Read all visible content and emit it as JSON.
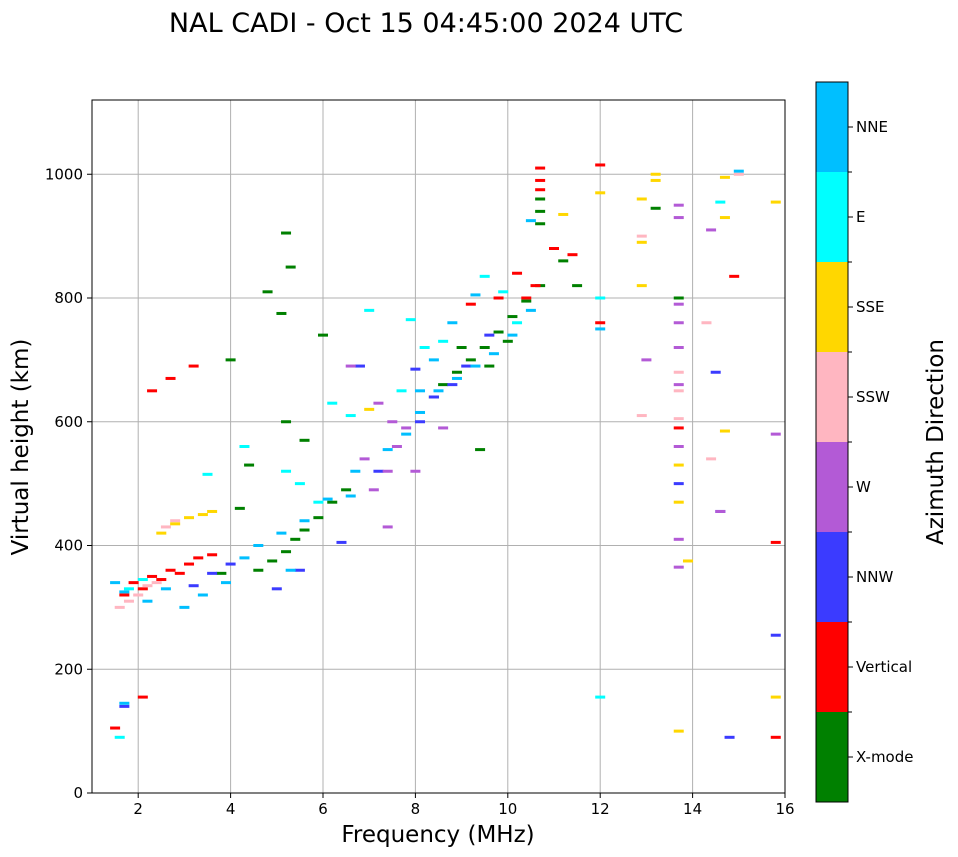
{
  "chart_data": {
    "type": "scatter",
    "title": "NAL CADI - Oct 15 04:45:00 2024 UTC",
    "xlabel": "Frequency (MHz)",
    "ylabel": "Virtual height (km)",
    "xlim": [
      1,
      16
    ],
    "ylim": [
      0,
      1120
    ],
    "xticks": [
      2,
      4,
      6,
      8,
      10,
      12,
      14,
      16
    ],
    "yticks": [
      0,
      200,
      400,
      600,
      800,
      1000
    ],
    "grid": true,
    "colorbar": {
      "label": "Azimuth Direction",
      "categories": [
        "X-mode",
        "Vertical",
        "NNW",
        "W",
        "SSW",
        "SSE",
        "E",
        "NNE"
      ],
      "colors": [
        "#008000",
        "#ff0000",
        "#3b3bff",
        "#b35ad6",
        "#ffb6c1",
        "#ffd700",
        "#00ffff",
        "#00bfff"
      ]
    },
    "series": [
      {
        "name": "X-mode",
        "points": [
          [
            4.6,
            360
          ],
          [
            4.9,
            375
          ],
          [
            5.2,
            390
          ],
          [
            5.4,
            410
          ],
          [
            5.6,
            425
          ],
          [
            5.9,
            445
          ],
          [
            6.2,
            470
          ],
          [
            6.5,
            490
          ],
          [
            8.6,
            660
          ],
          [
            8.9,
            680
          ],
          [
            9.2,
            700
          ],
          [
            9.5,
            720
          ],
          [
            9.8,
            745
          ],
          [
            10.1,
            770
          ],
          [
            10.4,
            795
          ],
          [
            10.7,
            820
          ],
          [
            10.7,
            960
          ],
          [
            10.7,
            940
          ],
          [
            10.7,
            920
          ],
          [
            11.2,
            860
          ],
          [
            11.5,
            820
          ],
          [
            13.2,
            945
          ],
          [
            4.8,
            810
          ],
          [
            5.1,
            775
          ],
          [
            5.3,
            850
          ],
          [
            5.2,
            905
          ],
          [
            4.0,
            700
          ],
          [
            5.6,
            570
          ],
          [
            5.2,
            600
          ],
          [
            9.4,
            555
          ],
          [
            13.7,
            800
          ],
          [
            9.0,
            720
          ],
          [
            9.6,
            690
          ],
          [
            10.0,
            730
          ],
          [
            8.4,
            640
          ],
          [
            4.4,
            530
          ],
          [
            4.2,
            460
          ],
          [
            3.8,
            355
          ],
          [
            6.0,
            740
          ]
        ]
      },
      {
        "name": "Vertical",
        "points": [
          [
            1.7,
            320
          ],
          [
            1.9,
            340
          ],
          [
            2.1,
            330
          ],
          [
            2.3,
            350
          ],
          [
            2.5,
            345
          ],
          [
            2.7,
            360
          ],
          [
            2.9,
            355
          ],
          [
            3.1,
            370
          ],
          [
            3.3,
            380
          ],
          [
            3.6,
            385
          ],
          [
            10.7,
            1010
          ],
          [
            10.7,
            990
          ],
          [
            10.7,
            975
          ],
          [
            10.6,
            820
          ],
          [
            10.2,
            840
          ],
          [
            10.4,
            800
          ],
          [
            11.0,
            880
          ],
          [
            11.4,
            870
          ],
          [
            12.0,
            1015
          ],
          [
            14.9,
            835
          ],
          [
            15.8,
            405
          ],
          [
            15.8,
            90
          ],
          [
            12.0,
            760
          ],
          [
            9.2,
            790
          ],
          [
            2.3,
            650
          ],
          [
            2.7,
            670
          ],
          [
            3.2,
            690
          ],
          [
            1.5,
            105
          ],
          [
            2.1,
            155
          ],
          [
            13.7,
            590
          ],
          [
            9.8,
            800
          ]
        ]
      },
      {
        "name": "NNW",
        "points": [
          [
            3.2,
            335
          ],
          [
            3.6,
            355
          ],
          [
            4.0,
            370
          ],
          [
            5.0,
            330
          ],
          [
            5.5,
            360
          ],
          [
            6.4,
            405
          ],
          [
            7.2,
            520
          ],
          [
            8.1,
            600
          ],
          [
            8.4,
            640
          ],
          [
            8.8,
            660
          ],
          [
            9.1,
            690
          ],
          [
            9.6,
            740
          ],
          [
            14.5,
            680
          ],
          [
            14.8,
            90
          ],
          [
            15.8,
            255
          ],
          [
            13.7,
            500
          ],
          [
            6.8,
            690
          ],
          [
            1.7,
            140
          ],
          [
            14.6,
            455
          ],
          [
            8.0,
            685
          ]
        ]
      },
      {
        "name": "W",
        "points": [
          [
            7.1,
            490
          ],
          [
            7.4,
            520
          ],
          [
            7.6,
            560
          ],
          [
            7.8,
            590
          ],
          [
            7.5,
            600
          ],
          [
            7.2,
            630
          ],
          [
            6.9,
            540
          ],
          [
            8.0,
            520
          ],
          [
            13.7,
            950
          ],
          [
            13.7,
            930
          ],
          [
            13.7,
            790
          ],
          [
            13.7,
            760
          ],
          [
            13.7,
            720
          ],
          [
            13.7,
            660
          ],
          [
            13.7,
            560
          ],
          [
            13.7,
            410
          ],
          [
            13.7,
            365
          ],
          [
            14.6,
            455
          ],
          [
            14.4,
            910
          ],
          [
            15.8,
            580
          ],
          [
            8.6,
            590
          ],
          [
            13.0,
            700
          ],
          [
            6.6,
            690
          ],
          [
            7.4,
            430
          ]
        ]
      },
      {
        "name": "SSW",
        "points": [
          [
            1.6,
            300
          ],
          [
            1.8,
            310
          ],
          [
            2.0,
            320
          ],
          [
            2.2,
            335
          ],
          [
            2.4,
            340
          ],
          [
            2.6,
            430
          ],
          [
            2.8,
            440
          ],
          [
            12.9,
            610
          ],
          [
            12.9,
            900
          ],
          [
            13.7,
            650
          ],
          [
            13.7,
            605
          ],
          [
            14.4,
            540
          ],
          [
            15.0,
            1000
          ],
          [
            14.3,
            760
          ],
          [
            13.7,
            680
          ]
        ]
      },
      {
        "name": "SSE",
        "points": [
          [
            2.5,
            420
          ],
          [
            2.8,
            435
          ],
          [
            3.1,
            445
          ],
          [
            3.4,
            450
          ],
          [
            3.6,
            455
          ],
          [
            12.9,
            820
          ],
          [
            12.9,
            890
          ],
          [
            12.9,
            960
          ],
          [
            13.2,
            1000
          ],
          [
            13.2,
            990
          ],
          [
            13.7,
            530
          ],
          [
            13.7,
            470
          ],
          [
            13.9,
            375
          ],
          [
            13.7,
            100
          ],
          [
            14.7,
            930
          ],
          [
            14.7,
            995
          ],
          [
            15.8,
            955
          ],
          [
            15.8,
            155
          ],
          [
            14.7,
            585
          ],
          [
            12.0,
            970
          ],
          [
            11.2,
            935
          ],
          [
            7.0,
            620
          ]
        ]
      },
      {
        "name": "E",
        "points": [
          [
            1.6,
            90
          ],
          [
            1.8,
            330
          ],
          [
            2.1,
            345
          ],
          [
            3.5,
            515
          ],
          [
            4.3,
            560
          ],
          [
            5.2,
            520
          ],
          [
            5.9,
            470
          ],
          [
            6.2,
            630
          ],
          [
            6.6,
            610
          ],
          [
            7.0,
            780
          ],
          [
            7.9,
            765
          ],
          [
            8.2,
            720
          ],
          [
            8.6,
            730
          ],
          [
            9.5,
            835
          ],
          [
            10.2,
            760
          ],
          [
            12.0,
            155
          ],
          [
            12.0,
            800
          ],
          [
            14.6,
            955
          ],
          [
            9.9,
            810
          ],
          [
            5.5,
            500
          ],
          [
            7.7,
            650
          ]
        ]
      },
      {
        "name": "NNE",
        "points": [
          [
            1.5,
            340
          ],
          [
            1.7,
            325
          ],
          [
            2.2,
            310
          ],
          [
            2.6,
            330
          ],
          [
            3.0,
            300
          ],
          [
            3.4,
            320
          ],
          [
            3.9,
            340
          ],
          [
            4.3,
            380
          ],
          [
            4.6,
            400
          ],
          [
            5.1,
            420
          ],
          [
            5.6,
            440
          ],
          [
            6.1,
            475
          ],
          [
            6.7,
            520
          ],
          [
            7.4,
            555
          ],
          [
            7.8,
            580
          ],
          [
            8.1,
            615
          ],
          [
            8.5,
            650
          ],
          [
            8.9,
            670
          ],
          [
            9.3,
            690
          ],
          [
            9.7,
            710
          ],
          [
            10.1,
            740
          ],
          [
            10.5,
            780
          ],
          [
            10.5,
            925
          ],
          [
            8.8,
            760
          ],
          [
            9.3,
            805
          ],
          [
            6.6,
            480
          ],
          [
            5.3,
            360
          ],
          [
            1.7,
            145
          ],
          [
            8.1,
            650
          ],
          [
            8.4,
            700
          ],
          [
            12.0,
            750
          ],
          [
            15.0,
            1005
          ]
        ]
      }
    ]
  }
}
